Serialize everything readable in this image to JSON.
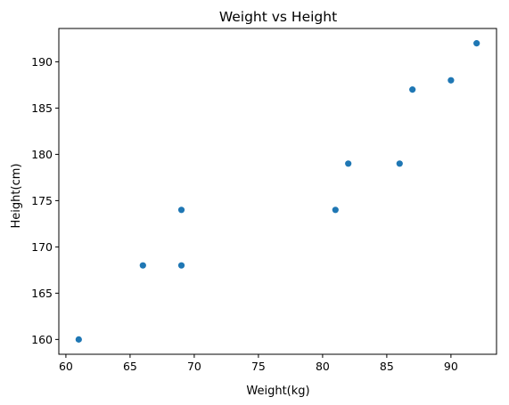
{
  "chart_data": {
    "type": "scatter",
    "title": "Weight vs Height",
    "xlabel": "Weight(kg)",
    "ylabel": "Height(cm)",
    "xlim": [
      59.45,
      93.55
    ],
    "ylim": [
      158.4,
      193.6
    ],
    "xticks": [
      60,
      65,
      70,
      75,
      80,
      85,
      90
    ],
    "yticks": [
      160,
      165,
      170,
      175,
      180,
      185,
      190
    ],
    "grid": false,
    "legend": "none",
    "marker_color": "#1f77b4",
    "points": [
      {
        "x": 61,
        "y": 160
      },
      {
        "x": 66,
        "y": 168
      },
      {
        "x": 69,
        "y": 168
      },
      {
        "x": 69,
        "y": 174
      },
      {
        "x": 81,
        "y": 174
      },
      {
        "x": 82,
        "y": 179
      },
      {
        "x": 86,
        "y": 179
      },
      {
        "x": 87,
        "y": 187
      },
      {
        "x": 90,
        "y": 188
      },
      {
        "x": 92,
        "y": 192
      }
    ]
  }
}
